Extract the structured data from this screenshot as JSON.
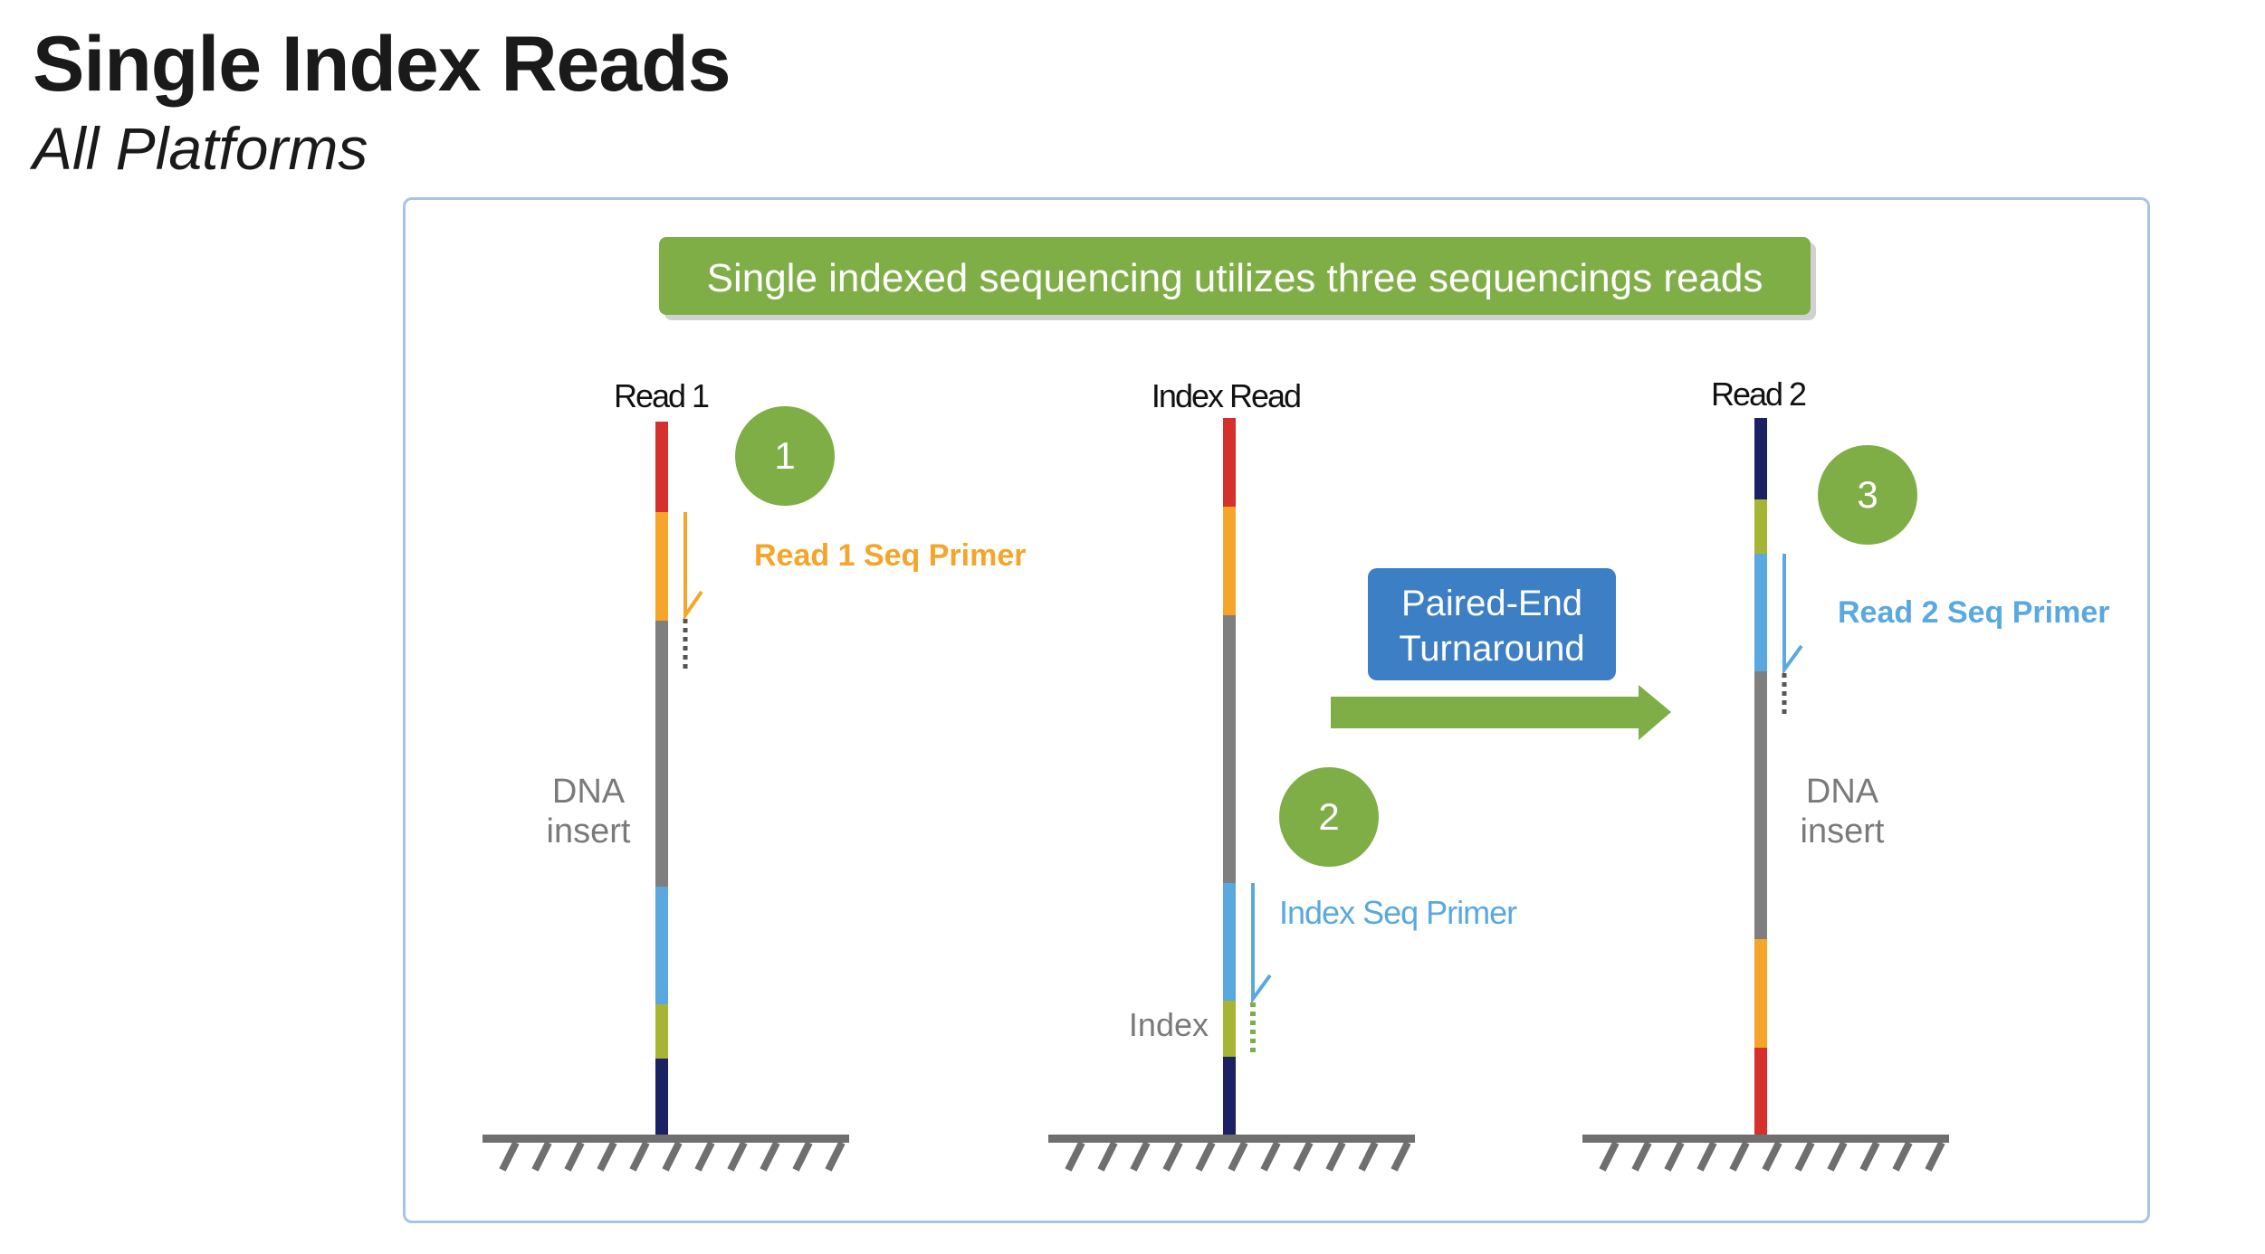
{
  "header": {
    "title": "Single Index Reads",
    "subtitle": "All Platforms"
  },
  "banner": {
    "text": "Single indexed sequencing utilizes three sequencings reads",
    "color": "#7fae47"
  },
  "reads": [
    {
      "label": "Read 1",
      "step": "1",
      "primer_label": "Read 1 Seq Primer",
      "primer_color": "#f4a52a",
      "insert_label_line1": "DNA",
      "insert_label_line2": "insert"
    },
    {
      "label": "Index Read",
      "step": "2",
      "primer_label": "Index Seq Primer",
      "primer_color": "#5aa8e0",
      "index_label": "Index"
    },
    {
      "label": "Read 2",
      "step": "3",
      "primer_label": "Read 2 Seq Primer",
      "primer_color": "#5aa8e0",
      "insert_label_line1": "DNA",
      "insert_label_line2": "insert"
    }
  ],
  "turnaround": {
    "line1": "Paired-End",
    "line2": "Turnaround",
    "color": "#3d7fc4"
  },
  "colors": {
    "step_circle": "#7fae47",
    "red": "#d5302b",
    "orange": "#f4a52a",
    "gray": "#7f7f7f",
    "light_blue": "#5aa8e0",
    "olive": "#a6b534",
    "navy": "#1b2264",
    "surface": "#6f6f6f",
    "label_gray": "#7a7a7a"
  }
}
